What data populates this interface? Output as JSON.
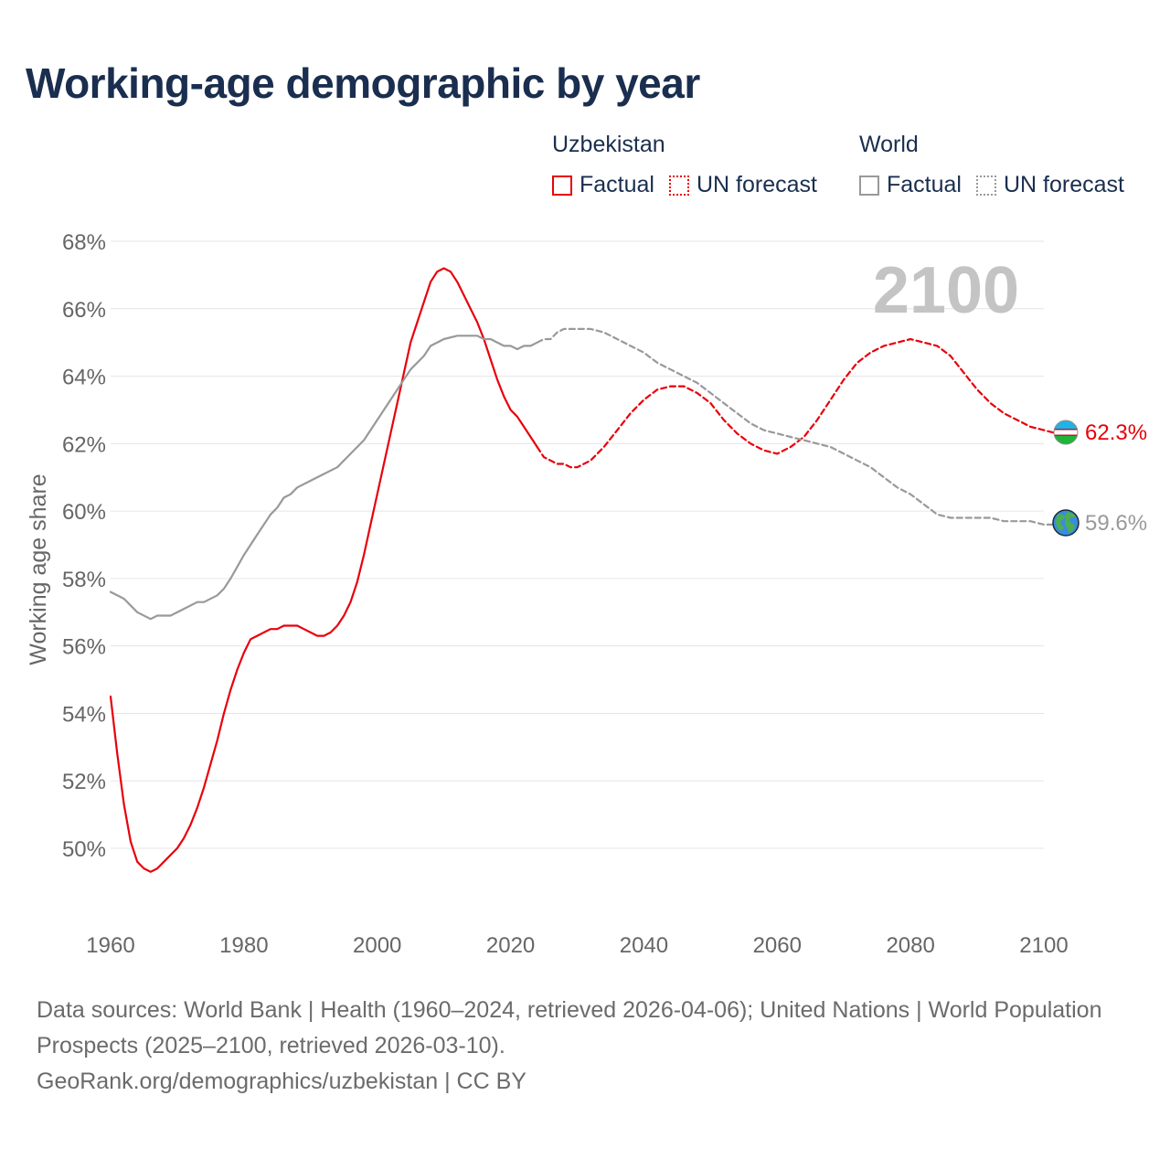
{
  "title": "Working-age demographic by year",
  "legend": {
    "groups": [
      {
        "name": "Uzbekistan",
        "factual_label": "Factual",
        "forecast_label": "UN forecast"
      },
      {
        "name": "World",
        "factual_label": "Factual",
        "forecast_label": "UN forecast"
      }
    ]
  },
  "year_label": "2100",
  "footer": {
    "sources": "Data sources: World Bank | Health (1960–2024, retrieved 2026-04-06); United Nations | World Population Prospects (2025–2100, retrieved 2026-03-10).",
    "credit": "GeoRank.org/demographics/uzbekistan | CC BY"
  },
  "chart_data": {
    "type": "line",
    "title": "Working-age demographic by year",
    "xlabel": "",
    "ylabel": "Working age share",
    "xlim": [
      1960,
      2103
    ],
    "ylim": [
      48,
      69
    ],
    "x_ticks": [
      1960,
      1980,
      2000,
      2020,
      2040,
      2060,
      2080,
      2100
    ],
    "y_ticks": [
      50,
      52,
      54,
      56,
      58,
      60,
      62,
      64,
      66,
      68
    ],
    "y_tick_suffix": "%",
    "colors": {
      "uzbekistan": "#e8000b",
      "world": "#999999",
      "grid": "#e6e6e6",
      "axis_text": "#666666"
    },
    "end_labels": {
      "uzbekistan": "62.3%",
      "world": "59.6%"
    },
    "series": [
      {
        "name": "Uzbekistan",
        "key": "uzbekistan",
        "style": "factual",
        "points": [
          [
            1960,
            54.5
          ],
          [
            1961,
            52.8
          ],
          [
            1962,
            51.3
          ],
          [
            1963,
            50.2
          ],
          [
            1964,
            49.6
          ],
          [
            1965,
            49.4
          ],
          [
            1966,
            49.3
          ],
          [
            1967,
            49.4
          ],
          [
            1968,
            49.6
          ],
          [
            1969,
            49.8
          ],
          [
            1970,
            50.0
          ],
          [
            1971,
            50.3
          ],
          [
            1972,
            50.7
          ],
          [
            1973,
            51.2
          ],
          [
            1974,
            51.8
          ],
          [
            1975,
            52.5
          ],
          [
            1976,
            53.2
          ],
          [
            1977,
            54.0
          ],
          [
            1978,
            54.7
          ],
          [
            1979,
            55.3
          ],
          [
            1980,
            55.8
          ],
          [
            1981,
            56.2
          ],
          [
            1982,
            56.3
          ],
          [
            1983,
            56.4
          ],
          [
            1984,
            56.5
          ],
          [
            1985,
            56.5
          ],
          [
            1986,
            56.6
          ],
          [
            1987,
            56.6
          ],
          [
            1988,
            56.6
          ],
          [
            1989,
            56.5
          ],
          [
            1990,
            56.4
          ],
          [
            1991,
            56.3
          ],
          [
            1992,
            56.3
          ],
          [
            1993,
            56.4
          ],
          [
            1994,
            56.6
          ],
          [
            1995,
            56.9
          ],
          [
            1996,
            57.3
          ],
          [
            1997,
            57.9
          ],
          [
            1998,
            58.7
          ],
          [
            1999,
            59.6
          ],
          [
            2000,
            60.5
          ],
          [
            2001,
            61.4
          ],
          [
            2002,
            62.3
          ],
          [
            2003,
            63.2
          ],
          [
            2004,
            64.1
          ],
          [
            2005,
            65.0
          ],
          [
            2006,
            65.6
          ],
          [
            2007,
            66.2
          ],
          [
            2008,
            66.8
          ],
          [
            2009,
            67.1
          ],
          [
            2010,
            67.2
          ],
          [
            2011,
            67.1
          ],
          [
            2012,
            66.8
          ],
          [
            2013,
            66.4
          ],
          [
            2014,
            66.0
          ],
          [
            2015,
            65.6
          ],
          [
            2016,
            65.1
          ],
          [
            2017,
            64.5
          ],
          [
            2018,
            63.9
          ],
          [
            2019,
            63.4
          ],
          [
            2020,
            63.0
          ],
          [
            2021,
            62.8
          ],
          [
            2022,
            62.5
          ],
          [
            2023,
            62.2
          ],
          [
            2024,
            61.9
          ]
        ]
      },
      {
        "name": "Uzbekistan",
        "key": "uzbekistan",
        "style": "forecast",
        "points": [
          [
            2024,
            61.9
          ],
          [
            2025,
            61.6
          ],
          [
            2026,
            61.5
          ],
          [
            2027,
            61.4
          ],
          [
            2028,
            61.4
          ],
          [
            2029,
            61.3
          ],
          [
            2030,
            61.3
          ],
          [
            2032,
            61.5
          ],
          [
            2034,
            61.9
          ],
          [
            2036,
            62.4
          ],
          [
            2038,
            62.9
          ],
          [
            2040,
            63.3
          ],
          [
            2042,
            63.6
          ],
          [
            2044,
            63.7
          ],
          [
            2046,
            63.7
          ],
          [
            2048,
            63.5
          ],
          [
            2050,
            63.2
          ],
          [
            2052,
            62.7
          ],
          [
            2054,
            62.3
          ],
          [
            2056,
            62.0
          ],
          [
            2058,
            61.8
          ],
          [
            2060,
            61.7
          ],
          [
            2062,
            61.9
          ],
          [
            2064,
            62.2
          ],
          [
            2066,
            62.7
          ],
          [
            2068,
            63.3
          ],
          [
            2070,
            63.9
          ],
          [
            2072,
            64.4
          ],
          [
            2074,
            64.7
          ],
          [
            2076,
            64.9
          ],
          [
            2078,
            65.0
          ],
          [
            2080,
            65.1
          ],
          [
            2082,
            65.0
          ],
          [
            2084,
            64.9
          ],
          [
            2086,
            64.6
          ],
          [
            2088,
            64.1
          ],
          [
            2090,
            63.6
          ],
          [
            2092,
            63.2
          ],
          [
            2094,
            62.9
          ],
          [
            2096,
            62.7
          ],
          [
            2098,
            62.5
          ],
          [
            2100,
            62.4
          ],
          [
            2102,
            62.3
          ]
        ]
      },
      {
        "name": "World",
        "key": "world",
        "style": "factual",
        "points": [
          [
            1960,
            57.6
          ],
          [
            1962,
            57.4
          ],
          [
            1964,
            57.0
          ],
          [
            1966,
            56.8
          ],
          [
            1967,
            56.9
          ],
          [
            1969,
            56.9
          ],
          [
            1971,
            57.1
          ],
          [
            1973,
            57.3
          ],
          [
            1974,
            57.3
          ],
          [
            1976,
            57.5
          ],
          [
            1977,
            57.7
          ],
          [
            1978,
            58.0
          ],
          [
            1980,
            58.7
          ],
          [
            1982,
            59.3
          ],
          [
            1984,
            59.9
          ],
          [
            1985,
            60.1
          ],
          [
            1986,
            60.4
          ],
          [
            1987,
            60.5
          ],
          [
            1988,
            60.7
          ],
          [
            1990,
            60.9
          ],
          [
            1992,
            61.1
          ],
          [
            1994,
            61.3
          ],
          [
            1996,
            61.7
          ],
          [
            1998,
            62.1
          ],
          [
            2000,
            62.7
          ],
          [
            2002,
            63.3
          ],
          [
            2004,
            63.9
          ],
          [
            2005,
            64.2
          ],
          [
            2007,
            64.6
          ],
          [
            2008,
            64.9
          ],
          [
            2010,
            65.1
          ],
          [
            2012,
            65.2
          ],
          [
            2015,
            65.2
          ],
          [
            2016,
            65.1
          ],
          [
            2017,
            65.1
          ],
          [
            2019,
            64.9
          ],
          [
            2020,
            64.9
          ],
          [
            2021,
            64.8
          ],
          [
            2022,
            64.9
          ],
          [
            2023,
            64.9
          ],
          [
            2024,
            65.0
          ]
        ]
      },
      {
        "name": "World",
        "key": "world",
        "style": "forecast",
        "points": [
          [
            2024,
            65.0
          ],
          [
            2025,
            65.1
          ],
          [
            2026,
            65.1
          ],
          [
            2027,
            65.3
          ],
          [
            2028,
            65.4
          ],
          [
            2032,
            65.4
          ],
          [
            2034,
            65.3
          ],
          [
            2036,
            65.1
          ],
          [
            2038,
            64.9
          ],
          [
            2040,
            64.7
          ],
          [
            2042,
            64.4
          ],
          [
            2044,
            64.2
          ],
          [
            2046,
            64.0
          ],
          [
            2048,
            63.8
          ],
          [
            2050,
            63.5
          ],
          [
            2052,
            63.2
          ],
          [
            2054,
            62.9
          ],
          [
            2056,
            62.6
          ],
          [
            2058,
            62.4
          ],
          [
            2060,
            62.3
          ],
          [
            2062,
            62.2
          ],
          [
            2064,
            62.1
          ],
          [
            2066,
            62.0
          ],
          [
            2068,
            61.9
          ],
          [
            2070,
            61.7
          ],
          [
            2072,
            61.5
          ],
          [
            2074,
            61.3
          ],
          [
            2076,
            61.0
          ],
          [
            2078,
            60.7
          ],
          [
            2080,
            60.5
          ],
          [
            2082,
            60.2
          ],
          [
            2084,
            59.9
          ],
          [
            2086,
            59.8
          ],
          [
            2088,
            59.8
          ],
          [
            2090,
            59.8
          ],
          [
            2092,
            59.8
          ],
          [
            2094,
            59.7
          ],
          [
            2096,
            59.7
          ],
          [
            2098,
            59.7
          ],
          [
            2100,
            59.6
          ],
          [
            2102,
            59.6
          ]
        ]
      }
    ]
  }
}
